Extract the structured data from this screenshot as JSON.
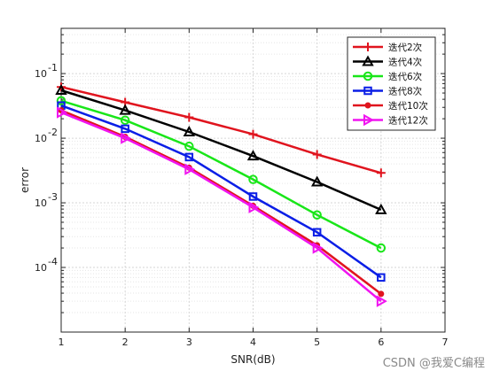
{
  "chart_data": {
    "type": "line",
    "xlabel": "SNR(dB)",
    "ylabel": "error",
    "xlim": [
      1,
      7
    ],
    "ylim_log10": [
      -5,
      -0.3
    ],
    "yscale": "log",
    "xticks": [
      "1",
      "2",
      "3",
      "4",
      "5",
      "6",
      "7"
    ],
    "yticks": [
      {
        "value": 0.1,
        "base": "10",
        "exp": "-1"
      },
      {
        "value": 0.01,
        "base": "10",
        "exp": "-2"
      },
      {
        "value": 0.001,
        "base": "10",
        "exp": "-3"
      },
      {
        "value": 0.0001,
        "base": "10",
        "exp": "-4"
      }
    ],
    "grid": true,
    "legend_position": "top-right",
    "x": [
      1,
      2,
      3,
      4,
      5,
      6
    ],
    "series": [
      {
        "name": "迭代2次",
        "color": "#e0141e",
        "marker": "plus",
        "values": [
          0.062,
          0.036,
          0.021,
          0.0115,
          0.0056,
          0.0029
        ]
      },
      {
        "name": "迭代4次",
        "color": "#000000",
        "marker": "triangle-up",
        "values": [
          0.055,
          0.027,
          0.0125,
          0.0053,
          0.0021,
          0.00078
        ]
      },
      {
        "name": "迭代6次",
        "color": "#19e619",
        "marker": "circle",
        "values": [
          0.038,
          0.019,
          0.0075,
          0.0023,
          0.00065,
          0.0002
        ]
      },
      {
        "name": "迭代8次",
        "color": "#0a1ee6",
        "marker": "square",
        "values": [
          0.032,
          0.014,
          0.0051,
          0.00125,
          0.00035,
          7e-05
        ]
      },
      {
        "name": "迭代10次",
        "color": "#e0141e",
        "marker": "dot",
        "values": [
          0.027,
          0.0105,
          0.0035,
          0.0009,
          0.00022,
          3.9e-05
        ]
      },
      {
        "name": "迭代12次",
        "color": "#f014f0",
        "marker": "triangle-right",
        "values": [
          0.025,
          0.01,
          0.0033,
          0.00085,
          0.0002,
          3e-05
        ]
      }
    ]
  },
  "watermark": "CSDN @我爱C编程"
}
